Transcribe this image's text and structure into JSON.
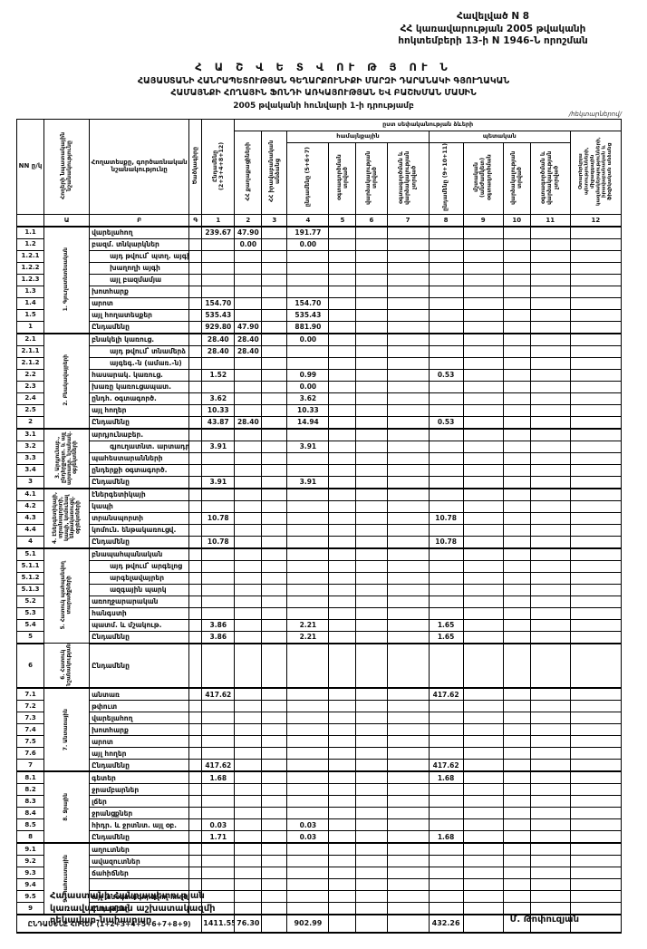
{
  "page": {
    "appendix": [
      "Հավելված N 8",
      "ՀՀ կառավարության 2005 թվականի",
      "հոկտեմբերի 13-ի N 1946-Ն որոշման"
    ],
    "title": "Հ Ա Շ Վ Ե Տ Վ ՈՒ Թ Յ ՈՒ Ն",
    "subtitle1": "ՀԱՅԱՍՏԱՆԻ ՀԱՆՐԱՊԵՏՈՒԹՅԱՆ ԳԵՂԱՐՔՈՒՆԻՔԻ ՄԱՐԶԻ ԴԱՐԱՆԱԿԻ ԳՅՈՒՂԱԿԱՆ",
    "subtitle2": "ՀԱՄԱՅՆՔԻ ՀՈՂԱՅԻՆ ՖՈՆԴԻ ԱՌԿԱՅՈՒԹՅԱՆ ԵՎ ԲԱՇԽՄԱՆ ՄԱՍԻՆ",
    "as_of": "2005 թվականի հունվարի 1-ի դրությամբ",
    "units_note": "/հեկտարներով/"
  },
  "table": {
    "header": {
      "nn": "NN ը/կ",
      "purpose_col": "Հողերի նպատակային նշանակությունը",
      "name_col": "Հողատեսքը, գործառնական նշանակությունը",
      "code_col": "Ծածկագիրը",
      "c1": "Ընդամենը (2+3+4+8+12)",
      "ownership_band": "ըստ սեփականության ձևերի",
      "group_community": "համայնքային",
      "group_state": "պետական",
      "c2": "ՀՀ քաղաքացիների",
      "c3": "ՀՀ իրավաբանական անձանց",
      "c4": "ընդամենը (5+6+7)",
      "c5": "օգտագործման տրված",
      "c6": "վարձակալության տրված",
      "c7": "օգտագործման և վարձակալության չտրված",
      "c8": "ընդամենը (9+10+11)",
      "c9": "մշտական (անժամկետ) օգտագործման",
      "c10": "վարձակալության տրված",
      "c11": "օգտագործման և վարձակալության չտրված",
      "c12": "Օտարերկրյա պետությունների, միջազգային կազմակերպությունների, իրավաբանական և ֆիզիկական անձանց"
    },
    "col_numbers": [
      "",
      "Ա",
      "Բ",
      "Գ",
      "1",
      "2",
      "3",
      "4",
      "5",
      "6",
      "7",
      "8",
      "9",
      "10",
      "11",
      "12"
    ],
    "sections": [
      {
        "label": "1. Գյուղատնտեսական",
        "rows": [
          {
            "n": "1.1",
            "label": "վարելահող",
            "v": {
              "c1": "239.67",
              "c2": "47.90",
              "c4": "191.77"
            }
          },
          {
            "n": "1.2",
            "label": "բազմ. տնկարկներ",
            "v": {
              "c2": "0.00",
              "c4": "0.00"
            }
          },
          {
            "n": "1.2.1",
            "label": "այդ թվում՝ պտղ. այգի",
            "indent": true
          },
          {
            "n": "1.2.2",
            "label": "խաղողի այգի",
            "indent": true
          },
          {
            "n": "1.2.3",
            "label": "այլ բազմամյա",
            "indent": true
          },
          {
            "n": "1.3",
            "label": "խոտհարք"
          },
          {
            "n": "1.4",
            "label": "արոտ",
            "v": {
              "c1": "154.70",
              "c4": "154.70"
            }
          },
          {
            "n": "1.5",
            "label": "այլ հողատեսքեր",
            "v": {
              "c1": "535.43",
              "c4": "535.43"
            }
          },
          {
            "n": "1",
            "label": "Ընդամենը",
            "total": true,
            "v": {
              "c1": "929.80",
              "c2": "47.90",
              "c4": "881.90"
            }
          }
        ]
      },
      {
        "label": "2. Բնակավայրերի",
        "rows": [
          {
            "n": "2.1",
            "label": "բնակելի կառուց.",
            "v": {
              "c1": "28.40",
              "c2": "28.40",
              "c4": "0.00"
            }
          },
          {
            "n": "2.1.1",
            "label": "այդ թվում՝ տնամերձ",
            "indent": true,
            "v": {
              "c1": "28.40",
              "c2": "28.40"
            }
          },
          {
            "n": "2.1.2",
            "label": "այգեգ.-ն (ամառ.-ն)",
            "indent": true
          },
          {
            "n": "2.2",
            "label": "հասարակ. կառուց.",
            "v": {
              "c1": "1.52",
              "c4": "0.99",
              "c8": "0.53"
            }
          },
          {
            "n": "2.3",
            "label": "խառը կառուցապատ.",
            "v": {
              "c4": "0.00"
            }
          },
          {
            "n": "2.4",
            "label": "ընդհ. օգտագործ.",
            "v": {
              "c1": "3.62",
              "c4": "3.62"
            }
          },
          {
            "n": "2.5",
            "label": "այլ հողեր",
            "v": {
              "c1": "10.33",
              "c4": "10.33"
            }
          },
          {
            "n": "2",
            "label": "Ընդամենը",
            "total": true,
            "v": {
              "c1": "43.87",
              "c2": "28.40",
              "c4": "14.94",
              "c8": "0.53"
            }
          }
        ]
      },
      {
        "label": "3. Արդյունաբ., ընդերքօգտ. և այլ արտադր. նշանակ. օբյեկտների",
        "rows": [
          {
            "n": "3.1",
            "label": "արդյունաբեր."
          },
          {
            "n": "3.2",
            "label": "գյուղատնտ. արտադր.",
            "indent": true,
            "v": {
              "c1": "3.91",
              "c4": "3.91"
            }
          },
          {
            "n": "3.3",
            "label": "պահեստարանների"
          },
          {
            "n": "3.4",
            "label": "ընդերքի օգտագործ."
          },
          {
            "n": "3",
            "label": "Ընդամենը",
            "total": true,
            "v": {
              "c1": "3.91",
              "c4": "3.91"
            }
          }
        ]
      },
      {
        "label": "4. Էներգետիկայի, տրանսպորտի, կապի, կոմունալ ենթակառուցվ. օբյեկտների",
        "rows": [
          {
            "n": "4.1",
            "label": "էներգետիկայի"
          },
          {
            "n": "4.2",
            "label": "կապի"
          },
          {
            "n": "4.3",
            "label": "տրանսպորտի",
            "v": {
              "c1": "10.78",
              "c8": "10.78"
            }
          },
          {
            "n": "4.4",
            "label": "կոմուն. ենթակառուցվ."
          },
          {
            "n": "4",
            "label": "Ընդամենը",
            "total": true,
            "v": {
              "c1": "10.78",
              "c8": "10.78"
            }
          }
        ]
      },
      {
        "label": "5. Հատուկ պահպանվող տարածքների",
        "rows": [
          {
            "n": "5.1",
            "label": "բնապահպանական"
          },
          {
            "n": "5.1.1",
            "label": "այդ թվում՝ արգելոց",
            "indent": true
          },
          {
            "n": "5.1.2",
            "label": "արգելավայրեր",
            "indent": true
          },
          {
            "n": "5.1.3",
            "label": "ազգային պարկ",
            "indent": true
          },
          {
            "n": "5.2",
            "label": "առողջարարական"
          },
          {
            "n": "5.3",
            "label": "հանգստի"
          },
          {
            "n": "5.4",
            "label": "պատմ. և մշակութ.",
            "v": {
              "c1": "3.86",
              "c4": "2.21",
              "c8": "1.65"
            }
          },
          {
            "n": "5",
            "label": "Ընդամենը",
            "total": true,
            "v": {
              "c1": "3.86",
              "c4": "2.21",
              "c8": "1.65"
            }
          }
        ]
      },
      {
        "label": "6. Հատուկ նշանակության",
        "rows": [
          {
            "n": "6",
            "label": "Ընդամենը",
            "total": true,
            "tall": true
          }
        ]
      },
      {
        "label": "7. Անտառային",
        "rows": [
          {
            "n": "7.1",
            "label": "անտառ",
            "v": {
              "c1": "417.62",
              "c8": "417.62"
            }
          },
          {
            "n": "7.2",
            "label": "թփուտ"
          },
          {
            "n": "7.3",
            "label": "վարելահող"
          },
          {
            "n": "7.4",
            "label": "խոտհարք"
          },
          {
            "n": "7.5",
            "label": "արոտ"
          },
          {
            "n": "7.6",
            "label": "այլ հողեր"
          },
          {
            "n": "7",
            "label": "Ընդամենը",
            "total": true,
            "v": {
              "c1": "417.62",
              "c8": "417.62"
            }
          }
        ]
      },
      {
        "label": "8. Ջրային",
        "rows": [
          {
            "n": "8.1",
            "label": "գետեր",
            "v": {
              "c1": "1.68",
              "c8": "1.68"
            }
          },
          {
            "n": "8.2",
            "label": "ջրամբարներ"
          },
          {
            "n": "8.3",
            "label": "լճեր"
          },
          {
            "n": "8.4",
            "label": "ջրանցքներ"
          },
          {
            "n": "8.5",
            "label": "հիդր. և ջրտնտ. այլ օբ.",
            "v": {
              "c1": "0.03",
              "c4": "0.03"
            }
          },
          {
            "n": "8",
            "label": "Ընդամենը",
            "total": true,
            "v": {
              "c1": "1.71",
              "c4": "0.03",
              "c8": "1.68"
            }
          }
        ]
      },
      {
        "label": "9. Պահուստային",
        "rows": [
          {
            "n": "9.1",
            "label": "աղուտներ"
          },
          {
            "n": "9.2",
            "label": "ավազուտներ"
          },
          {
            "n": "9.3",
            "label": "ճահիճներ"
          },
          {
            "n": "9.4",
            "label": ""
          },
          {
            "n": "9.5",
            "label": "այլ անօգտագործվող հողեր"
          },
          {
            "n": "9",
            "label": "Ընդամենը",
            "total": true
          }
        ]
      }
    ],
    "grand_total": {
      "label": "ԸՆԴԱՄԵՆԸ ՀՈՂԵՐ (1+2+3+4+5+6+7+8+9)",
      "v": {
        "c1": "1411.55",
        "c2": "76.30",
        "c4": "902.99",
        "c8": "432.26"
      }
    }
  },
  "footer": {
    "left_lines": [
      "Հայաստանի Հանրապետության",
      "կառավարության աշխատակազմի",
      "ղեկավար-նախարար"
    ],
    "signature": "Մ. Թոփուզյան"
  }
}
